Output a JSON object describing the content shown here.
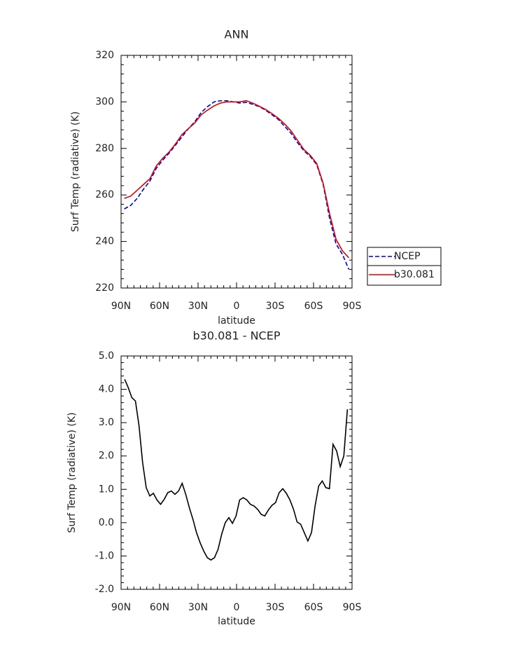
{
  "chart_data": [
    {
      "type": "line",
      "title": "ANN",
      "xlabel": "latitude",
      "ylabel": "Surf Temp (radiative) (K)",
      "x": [
        87.5,
        82.5,
        77.5,
        72.5,
        67.5,
        62.5,
        57.5,
        52.5,
        47.5,
        42.5,
        37.5,
        32.5,
        27.5,
        22.5,
        17.5,
        12.5,
        7.5,
        2.5,
        -2.5,
        -7.5,
        -12.5,
        -17.5,
        -22.5,
        -27.5,
        -32.5,
        -37.5,
        -42.5,
        -47.5,
        -52.5,
        -57.5,
        -62.5,
        -67.5,
        -72.5,
        -77.5,
        -82.5,
        -87.5
      ],
      "series": [
        {
          "name": "NCEP",
          "color": "#0000cc",
          "linestyle": "dashed",
          "values": [
            254,
            255.5,
            258.5,
            262.5,
            266,
            271.5,
            275,
            278,
            281.5,
            285,
            288.5,
            291.5,
            295.5,
            298,
            300,
            300.5,
            300.5,
            300,
            299.5,
            299.8,
            299,
            298,
            296.5,
            294.5,
            292.5,
            289.5,
            286.5,
            282.5,
            279,
            276.5,
            273,
            264.5,
            250,
            239,
            234.5,
            228
          ]
        },
        {
          "name": "b30.081",
          "color": "#e00000",
          "linestyle": "solid",
          "values": [
            258.5,
            259.5,
            262,
            264.5,
            267,
            272.5,
            275.8,
            278.5,
            282,
            286,
            288.5,
            291,
            294.5,
            296.5,
            298.3,
            299.5,
            300,
            300,
            300,
            300.5,
            299.5,
            298.2,
            296.8,
            295,
            293,
            290.5,
            287.5,
            283.5,
            279.5,
            277,
            273.5,
            265,
            252,
            241,
            236,
            233
          ]
        }
      ],
      "xlim": [
        90,
        -90
      ],
      "xticks": [
        {
          "value": 90,
          "label": "90N"
        },
        {
          "value": 60,
          "label": "60N"
        },
        {
          "value": 30,
          "label": "30N"
        },
        0,
        {
          "value": -30,
          "label": "30S"
        },
        {
          "value": -60,
          "label": "60S"
        },
        {
          "value": -90,
          "label": "90S"
        }
      ],
      "ylim": [
        220,
        320
      ],
      "yticks": [
        220,
        240,
        260,
        280,
        300,
        320
      ],
      "legend": "right"
    },
    {
      "type": "line",
      "title": "b30.081 - NCEP",
      "xlabel": "latitude",
      "ylabel": "Surf Temp (radiative) (K)",
      "color": "#000000",
      "x": [
        87.2,
        84.4,
        81.6,
        78.8,
        76,
        73.2,
        70.4,
        67.6,
        64.8,
        62,
        59.2,
        56.4,
        53.6,
        50.8,
        48,
        45.2,
        42.4,
        39.6,
        36.8,
        34,
        31.2,
        28.4,
        25.6,
        22.8,
        20,
        17.2,
        14.4,
        11.6,
        8.8,
        6,
        3.2,
        0.4,
        -2.4,
        -5.2,
        -8,
        -10.8,
        -13.6,
        -16.4,
        -19.2,
        -22,
        -24.8,
        -27.6,
        -30.4,
        -33.2,
        -36,
        -38.8,
        -41.6,
        -44.4,
        -47.2,
        -50,
        -52.8,
        -55.6,
        -58.4,
        -61.2,
        -64,
        -66.8,
        -69.6,
        -72.4,
        -75.2,
        -78,
        -80.8,
        -83.6,
        -86.4
      ],
      "values": [
        4.3,
        4.05,
        3.75,
        3.65,
        2.9,
        1.8,
        1.05,
        0.8,
        0.88,
        0.68,
        0.55,
        0.7,
        0.9,
        0.95,
        0.85,
        0.95,
        1.18,
        0.85,
        0.45,
        0.1,
        -0.3,
        -0.6,
        -0.85,
        -1.05,
        -1.12,
        -1.05,
        -0.8,
        -0.35,
        0,
        0.15,
        -0.02,
        0.2,
        0.68,
        0.75,
        0.68,
        0.55,
        0.5,
        0.4,
        0.25,
        0.2,
        0.38,
        0.52,
        0.6,
        0.9,
        1.02,
        0.88,
        0.68,
        0.4,
        0.02,
        -0.05,
        -0.3,
        -0.55,
        -0.3,
        0.5,
        1.1,
        1.25,
        1.05,
        1.02,
        2.35,
        2.15,
        1.68,
        2.0,
        3.4
      ],
      "xlim": [
        90,
        -90
      ],
      "xticks": [
        {
          "value": 90,
          "label": "90N"
        },
        {
          "value": 60,
          "label": "60N"
        },
        {
          "value": 30,
          "label": "30N"
        },
        0,
        {
          "value": -30,
          "label": "30S"
        },
        {
          "value": -60,
          "label": "60S"
        },
        {
          "value": -90,
          "label": "90S"
        }
      ],
      "ylim": [
        -2,
        5
      ],
      "yticks": [
        {
          "value": -2,
          "label": "-2.0"
        },
        {
          "value": -1,
          "label": "-1.0"
        },
        {
          "value": 0,
          "label": "0.0"
        },
        {
          "value": 1,
          "label": "1.0"
        },
        {
          "value": 2,
          "label": "2.0"
        },
        {
          "value": 3,
          "label": "3.0"
        },
        {
          "value": 4,
          "label": "4.0"
        },
        {
          "value": 5,
          "label": "5.0"
        }
      ]
    }
  ]
}
